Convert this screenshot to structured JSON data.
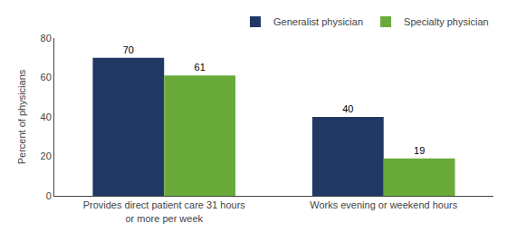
{
  "chart_data": {
    "type": "bar",
    "categories": [
      "Provides direct patient care 31 hours\nor more per week",
      "Works evening or weekend hours"
    ],
    "series": [
      {
        "name": "Generalist physician",
        "color": "#1f3864",
        "values": [
          70,
          40
        ]
      },
      {
        "name": "Specialty physician",
        "color": "#6aaa3a",
        "values": [
          61,
          19
        ]
      }
    ],
    "ylabel": "Percent of physicians",
    "ylim": [
      0,
      80
    ],
    "yticks": [
      0,
      20,
      40,
      60,
      80
    ],
    "data_labels": true,
    "grid": false,
    "legend": "upper right"
  }
}
